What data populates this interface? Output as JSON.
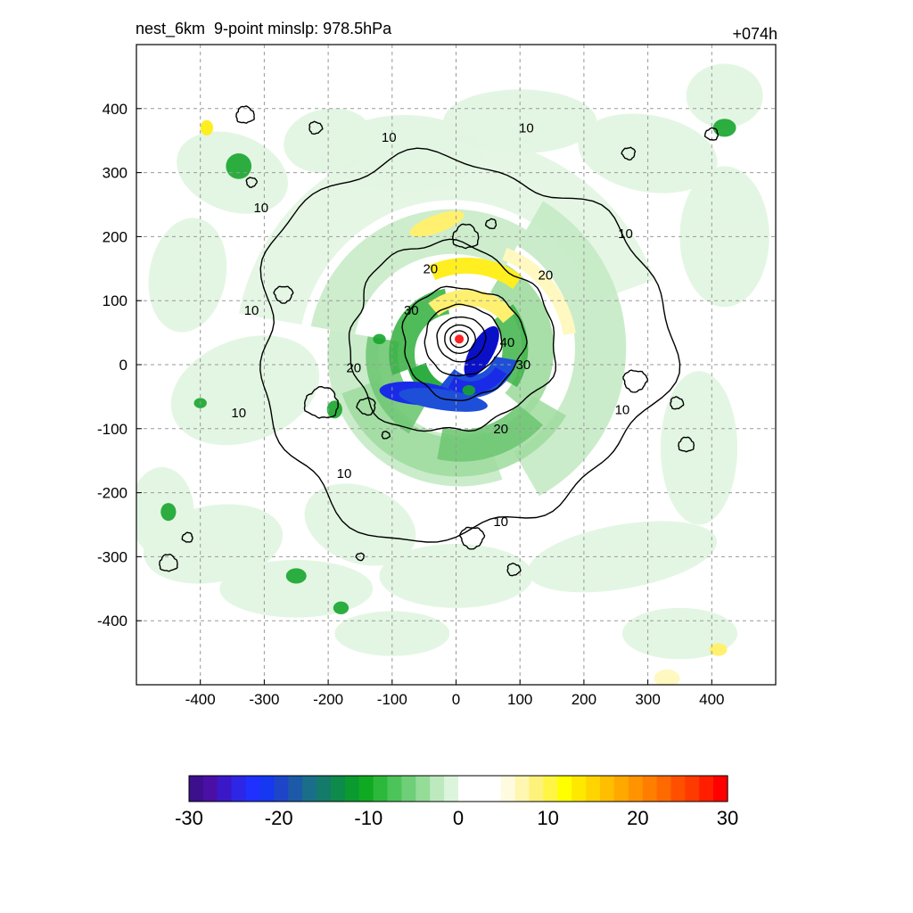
{
  "header": {
    "left_title": "nest_6km  9-point minslp: 978.5hPa",
    "right_title": "+074h"
  },
  "chart_data": {
    "type": "heatmap",
    "title": "nest_6km  9-point minslp: 978.5hPa",
    "forecast_time": "+074h",
    "xlabel": "",
    "ylabel": "",
    "xlim": [
      -500,
      500
    ],
    "ylim": [
      -500,
      500
    ],
    "x_ticks": [
      -400,
      -300,
      -200,
      -100,
      0,
      100,
      200,
      300,
      400
    ],
    "y_ticks": [
      400,
      300,
      200,
      100,
      0,
      -100,
      -200,
      -300,
      -400
    ],
    "grid": true,
    "colorbar": {
      "range": [
        -30,
        30
      ],
      "ticks": [
        -30,
        -20,
        -10,
        0,
        10,
        20,
        30
      ],
      "colors": [
        "#3c0f8c",
        "#4a10a6",
        "#3a18c8",
        "#2e26e6",
        "#1f30ff",
        "#1538f0",
        "#1e45c8",
        "#1c5aa8",
        "#1a6e8a",
        "#147a6a",
        "#0e8a4a",
        "#0a9a30",
        "#10aa22",
        "#2cb83a",
        "#4cc45a",
        "#6ecf78",
        "#94dc98",
        "#bde9bf",
        "#dcf4dc",
        "#ffffff",
        "#ffffff",
        "#ffffff",
        "#fffbe0",
        "#fff7b0",
        "#fff27a",
        "#fff545",
        "#ffff00",
        "#ffe800",
        "#ffd400",
        "#ffbe00",
        "#ffa800",
        "#ff9400",
        "#ff7e00",
        "#ff6a00",
        "#ff5000",
        "#ff3a00",
        "#ff1e00",
        "#ff0000"
      ]
    },
    "contours": {
      "labels": [
        "10",
        "20",
        "30",
        "40"
      ],
      "levels": [
        10,
        20,
        30,
        40,
        50,
        60
      ],
      "color": "#000000"
    },
    "center_marker": {
      "x": 5,
      "y": 40,
      "color": "#ff2020"
    }
  }
}
